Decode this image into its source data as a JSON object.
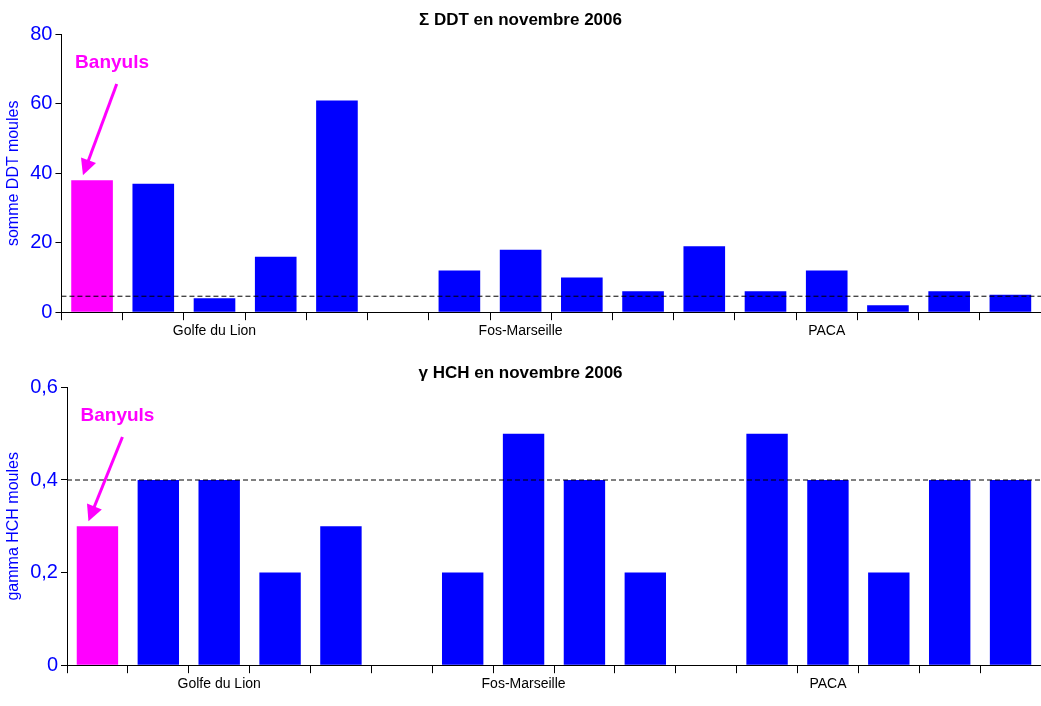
{
  "chart_data": [
    {
      "type": "bar",
      "title": "Σ DDT en novembre 2006",
      "ylabel": "somme DDT moules",
      "categories": [
        null,
        null,
        "Golfe du Lion",
        null,
        null,
        null,
        null,
        "Fos-Marseille",
        null,
        null,
        null,
        null,
        "PACA",
        null,
        null,
        null
      ],
      "values": [
        38,
        37,
        4,
        16,
        61,
        null,
        12,
        18,
        10,
        6,
        19,
        6,
        12,
        2,
        6,
        5
      ],
      "colors": [
        "#ff00ff",
        "#0000ff",
        "#0000ff",
        "#0000ff",
        "#0000ff",
        "#0000ff",
        "#0000ff",
        "#0000ff",
        "#0000ff",
        "#0000ff",
        "#0000ff",
        "#0000ff",
        "#0000ff",
        "#0000ff",
        "#0000ff",
        "#0000ff"
      ],
      "ylim": [
        0,
        80
      ],
      "yticks": [
        0,
        20,
        40,
        60,
        80
      ],
      "grid": false,
      "legend": false,
      "ref_lines": [
        {
          "axis": "y",
          "value": 4.6,
          "color": "#000000",
          "line_style": "dashed"
        }
      ],
      "annotations": [
        "Banyuls"
      ]
    },
    {
      "type": "bar",
      "title": "γ HCH en novembre 2006",
      "ylabel": "gamma HCH moules",
      "categories": [
        null,
        null,
        "Golfe du Lion",
        null,
        null,
        null,
        null,
        "Fos-Marseille",
        null,
        null,
        null,
        null,
        "PACA",
        null,
        null,
        null
      ],
      "values": [
        0.3,
        0.4,
        0.4,
        0.2,
        0.3,
        null,
        0.2,
        0.5,
        0.4,
        0.2,
        null,
        0.5,
        0.4,
        0.2,
        0.4,
        0.4
      ],
      "colors": [
        "#ff00ff",
        "#0000ff",
        "#0000ff",
        "#0000ff",
        "#0000ff",
        "#0000ff",
        "#0000ff",
        "#0000ff",
        "#0000ff",
        "#0000ff",
        "#0000ff",
        "#0000ff",
        "#0000ff",
        "#0000ff",
        "#0000ff",
        "#0000ff"
      ],
      "ylim": [
        0,
        0.6
      ],
      "yticks": [
        0,
        {
          "value": 0.2,
          "label": "0,2"
        },
        {
          "value": 0.4,
          "label": "0,4"
        },
        {
          "value": 0.6,
          "label": "0,6"
        }
      ],
      "grid": false,
      "legend": false,
      "ref_lines": [
        {
          "axis": "y",
          "value": 0.4,
          "color": "#000000",
          "line_style": "dashed"
        }
      ],
      "annotations": [
        "Banyuls"
      ]
    }
  ]
}
